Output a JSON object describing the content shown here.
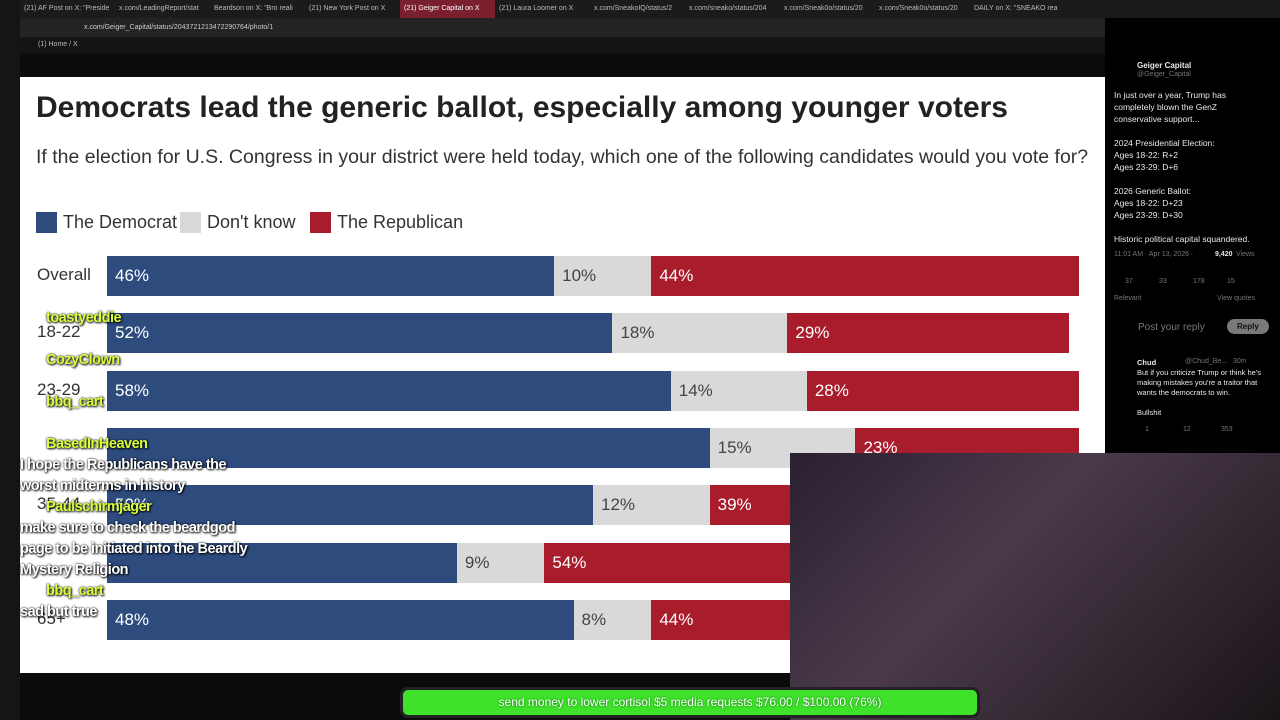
{
  "browser": {
    "tabs": [
      "(21) AF Post on X: \"Preside",
      "x.com/LeadingReport/stat",
      "Beardson on X: \"Bro reali",
      "(21) New York Post on X",
      "(21) Geiger Capital on X",
      "(21) Laura Loomer on X",
      "x.com/SneakoIQ/status/2",
      "x.com/sneako/status/204",
      "x.com/Sneak0o/status/20",
      "x.com/Sneak0o/status/20",
      "DAILY on X: \"SNEAKO rea"
    ],
    "active_tab": 4,
    "url": "x.com/Geiger_Capital/status/2043721213472290764/photo/1",
    "page_title": "(1) Home / X"
  },
  "chart_data": {
    "type": "bar",
    "orientation": "horizontal",
    "stacked": true,
    "title": "Democrats lead the generic ballot, especially among younger voters",
    "subtitle": "If the election for U.S. Congress in your district were held today, which one of the following candidates would you vote for?",
    "categories": [
      "Overall",
      "18-22",
      "23-29",
      null,
      "35-44",
      null,
      "65+"
    ],
    "xlim": [
      0,
      100
    ],
    "series": [
      {
        "name": "The Democrat",
        "color": "#2e4b7e",
        "label_color": "#ffffff",
        "values": [
          46,
          52,
          58,
          62,
          50,
          36,
          48
        ],
        "value_labels": [
          "46%",
          "52%",
          "58%",
          null,
          "50%",
          null,
          "48%"
        ]
      },
      {
        "name": "Don't know",
        "color": "#d9d9d9",
        "label_color": "#444444",
        "values": [
          10,
          18,
          14,
          15,
          12,
          9,
          8
        ],
        "value_labels": [
          "10%",
          "18%",
          "14%",
          "15%",
          "12%",
          "9%",
          "8%"
        ]
      },
      {
        "name": "The Republican",
        "color": "#a81c2c",
        "label_color": "#ffffff",
        "values": [
          44,
          29,
          28,
          23,
          39,
          54,
          44
        ],
        "value_labels": [
          "44%",
          "29%",
          "28%",
          "23%",
          "39%",
          "54%",
          "44%"
        ]
      }
    ]
  },
  "tweet": {
    "author": "Geiger Capital",
    "handle": "@Geiger_Capital",
    "body": [
      "In just over a year, Trump has completely blown the GenZ conservative support...",
      "",
      "2024 Presidential Election:",
      "Ages 18-22: R+2",
      "Ages 23-29: D+6",
      "",
      "2026 Generic Ballot:",
      "Ages 18-22: D+23",
      "Ages 23-29: D+30",
      "",
      "Historic political capital squandered."
    ],
    "time": "11:01 AM · Apr 13, 2026 ·",
    "views": "9,420",
    "views_label": "Views",
    "stats": [
      "37",
      "33",
      "178",
      "15"
    ],
    "sort": "Relevant",
    "quotes": "View quotes",
    "reply_placeholder": "Post your reply",
    "reply_button": "Reply",
    "reply": {
      "author": "Chud",
      "handle": "@Chud_Be...",
      "age": "30m",
      "text": "But if you criticize Trump or think he's making mistakes you're a traitor that wants the democrats to win.",
      "text2": "Bullshit",
      "stats": [
        "1",
        "12",
        "353"
      ]
    }
  },
  "chat": [
    {
      "user": "toastyeddie",
      "text": null
    },
    {
      "user": "CozyClown",
      "text": null
    },
    {
      "user": "bbq_cart",
      "text": null
    },
    {
      "user": "BasedInHeaven",
      "text": "I hope the Republicans have the worst midterms in history"
    },
    {
      "user": "Paulschirmjager",
      "text": "make sure to check the beardgod page to be initiated into the Beardly Mystery Religion"
    },
    {
      "user": "bbq_cart",
      "text": "sad but true"
    }
  ],
  "donation": "send money to lower cortisol $5 media requests $76.00 / $100.00 (76%)"
}
